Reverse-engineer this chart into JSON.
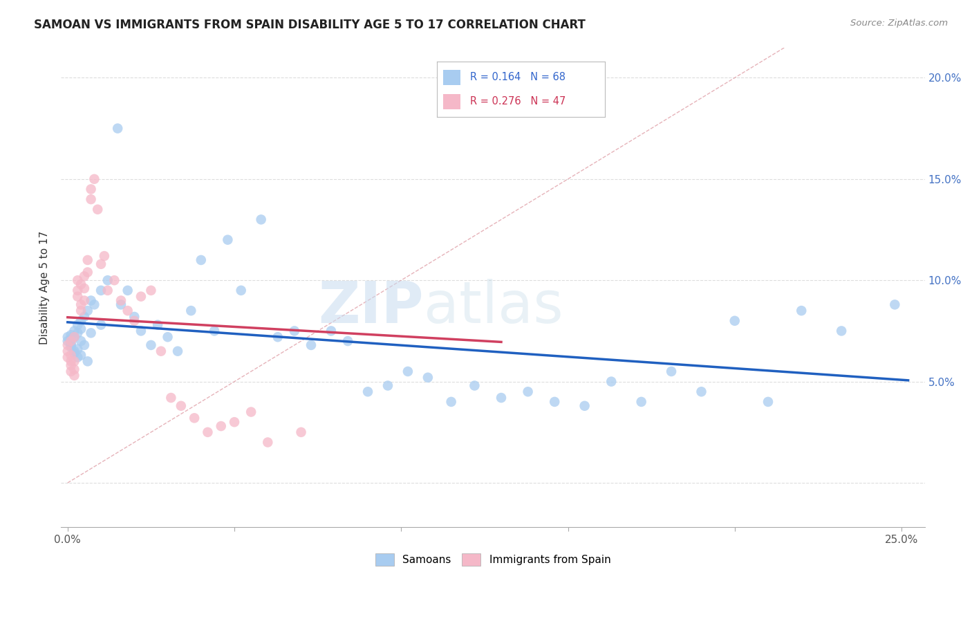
{
  "title": "SAMOAN VS IMMIGRANTS FROM SPAIN DISABILITY AGE 5 TO 17 CORRELATION CHART",
  "source": "Source: ZipAtlas.com",
  "ylabel_label": "Disability Age 5 to 17",
  "xlim": [
    -0.002,
    0.257
  ],
  "ylim": [
    -0.022,
    0.215
  ],
  "samoans_color": "#A8CCF0",
  "spain_color": "#F5B8C8",
  "trend_samoan_color": "#2060C0",
  "trend_spain_color": "#D04060",
  "diag_line_color": "#E0A0A8",
  "diag_line_style": "--",
  "R_samoan": 0.164,
  "N_samoan": 68,
  "R_spain": 0.276,
  "N_spain": 47,
  "legend_labels": [
    "Samoans",
    "Immigrants from Spain"
  ],
  "samoans_x": [
    0.0,
    0.0,
    0.001,
    0.001,
    0.001,
    0.001,
    0.001,
    0.002,
    0.002,
    0.002,
    0.002,
    0.003,
    0.003,
    0.003,
    0.003,
    0.004,
    0.004,
    0.004,
    0.004,
    0.005,
    0.005,
    0.006,
    0.006,
    0.007,
    0.007,
    0.008,
    0.01,
    0.01,
    0.012,
    0.015,
    0.016,
    0.018,
    0.02,
    0.022,
    0.025,
    0.027,
    0.03,
    0.033,
    0.037,
    0.04,
    0.044,
    0.048,
    0.052,
    0.058,
    0.063,
    0.068,
    0.073,
    0.079,
    0.084,
    0.09,
    0.096,
    0.102,
    0.108,
    0.115,
    0.122,
    0.13,
    0.138,
    0.146,
    0.155,
    0.163,
    0.172,
    0.181,
    0.19,
    0.2,
    0.21,
    0.22,
    0.232,
    0.248
  ],
  "samoans_y": [
    0.07,
    0.072,
    0.068,
    0.071,
    0.073,
    0.069,
    0.067,
    0.075,
    0.065,
    0.072,
    0.064,
    0.078,
    0.062,
    0.074,
    0.066,
    0.08,
    0.063,
    0.07,
    0.076,
    0.068,
    0.082,
    0.085,
    0.06,
    0.09,
    0.074,
    0.088,
    0.095,
    0.078,
    0.1,
    0.175,
    0.088,
    0.095,
    0.082,
    0.075,
    0.068,
    0.078,
    0.072,
    0.065,
    0.085,
    0.11,
    0.075,
    0.12,
    0.095,
    0.13,
    0.072,
    0.075,
    0.068,
    0.075,
    0.07,
    0.045,
    0.048,
    0.055,
    0.052,
    0.04,
    0.048,
    0.042,
    0.045,
    0.04,
    0.038,
    0.05,
    0.04,
    0.055,
    0.045,
    0.08,
    0.04,
    0.085,
    0.075,
    0.088
  ],
  "spain_x": [
    0.0,
    0.0,
    0.0,
    0.001,
    0.001,
    0.001,
    0.001,
    0.001,
    0.002,
    0.002,
    0.002,
    0.002,
    0.003,
    0.003,
    0.003,
    0.004,
    0.004,
    0.004,
    0.005,
    0.005,
    0.005,
    0.006,
    0.006,
    0.007,
    0.007,
    0.008,
    0.009,
    0.01,
    0.011,
    0.012,
    0.014,
    0.016,
    0.018,
    0.02,
    0.022,
    0.025,
    0.028,
    0.031,
    0.034,
    0.038,
    0.042,
    0.046,
    0.05,
    0.055,
    0.06,
    0.07,
    0.13
  ],
  "spain_y": [
    0.068,
    0.065,
    0.062,
    0.07,
    0.063,
    0.06,
    0.055,
    0.058,
    0.072,
    0.06,
    0.056,
    0.053,
    0.095,
    0.1,
    0.092,
    0.098,
    0.088,
    0.085,
    0.102,
    0.096,
    0.09,
    0.11,
    0.104,
    0.14,
    0.145,
    0.15,
    0.135,
    0.108,
    0.112,
    0.095,
    0.1,
    0.09,
    0.085,
    0.08,
    0.092,
    0.095,
    0.065,
    0.042,
    0.038,
    0.032,
    0.025,
    0.028,
    0.03,
    0.035,
    0.02,
    0.025,
    0.195
  ],
  "watermark_zip": "ZIP",
  "watermark_atlas": "atlas",
  "background_color": "#FFFFFF",
  "grid_color": "#DDDDDD"
}
